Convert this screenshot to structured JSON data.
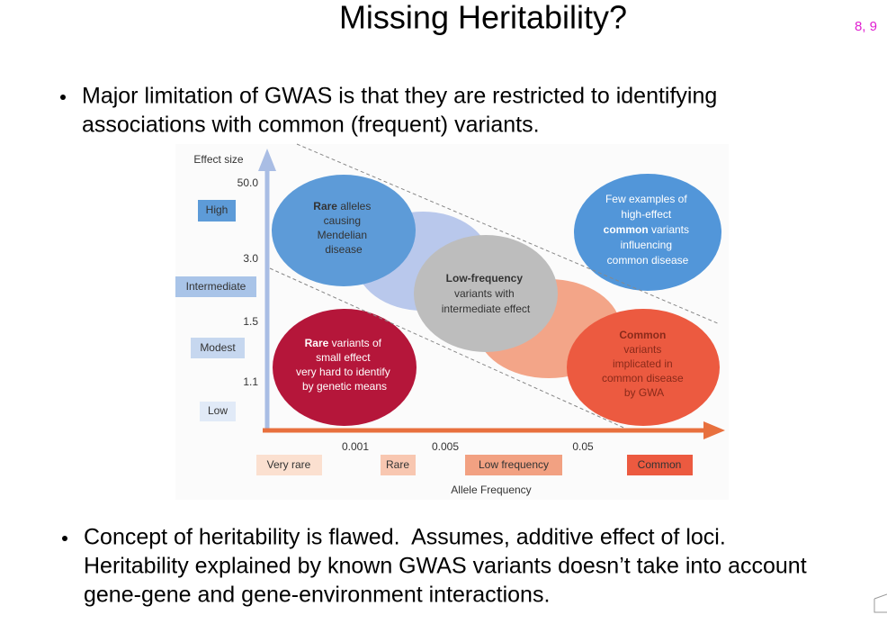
{
  "header": {
    "title": "Missing Heritability?",
    "page_ref": "8, 9"
  },
  "bullets": [
    {
      "lines": [
        "Major limitation of GWAS is that they are restricted to identifying",
        "associations with common (frequent) variants."
      ]
    },
    {
      "lines": [
        "Concept of heritability is flawed.  Assumes, additive effect of loci.",
        "Heritability explained by known GWAS variants doesn’t take into account",
        "gene-gene and gene-environment interactions."
      ]
    }
  ],
  "diagram": {
    "y_axis": {
      "title": "Effect size",
      "ticks": [
        "50.0",
        "3.0",
        "1.5",
        "1.1"
      ],
      "levels": [
        "High",
        "Intermediate",
        "Modest",
        "Low"
      ]
    },
    "x_axis": {
      "title": "Allele Frequency",
      "ticks": [
        "0.001",
        "0.005",
        "0.05"
      ],
      "levels": [
        "Very rare",
        "Rare",
        "Low frequency",
        "Common"
      ]
    },
    "regions": [
      {
        "lines": [
          [
            "Rare",
            " alleles"
          ],
          "causing",
          "Mendelian",
          "disease"
        ]
      },
      {
        "lines": [
          "Few examples of",
          "high-effect",
          [
            "common",
            " variants"
          ],
          "influencing",
          "common disease"
        ]
      },
      {
        "lines": [
          "Low-frequency",
          "variants with",
          "intermediate effect"
        ]
      },
      {
        "lines": [
          [
            "Rare",
            " variants of"
          ],
          "small effect",
          "very hard to identify",
          "by genetic means"
        ]
      },
      {
        "lines": [
          "Common",
          "variants",
          "implicated in",
          "common disease",
          "by GWA"
        ]
      }
    ]
  }
}
